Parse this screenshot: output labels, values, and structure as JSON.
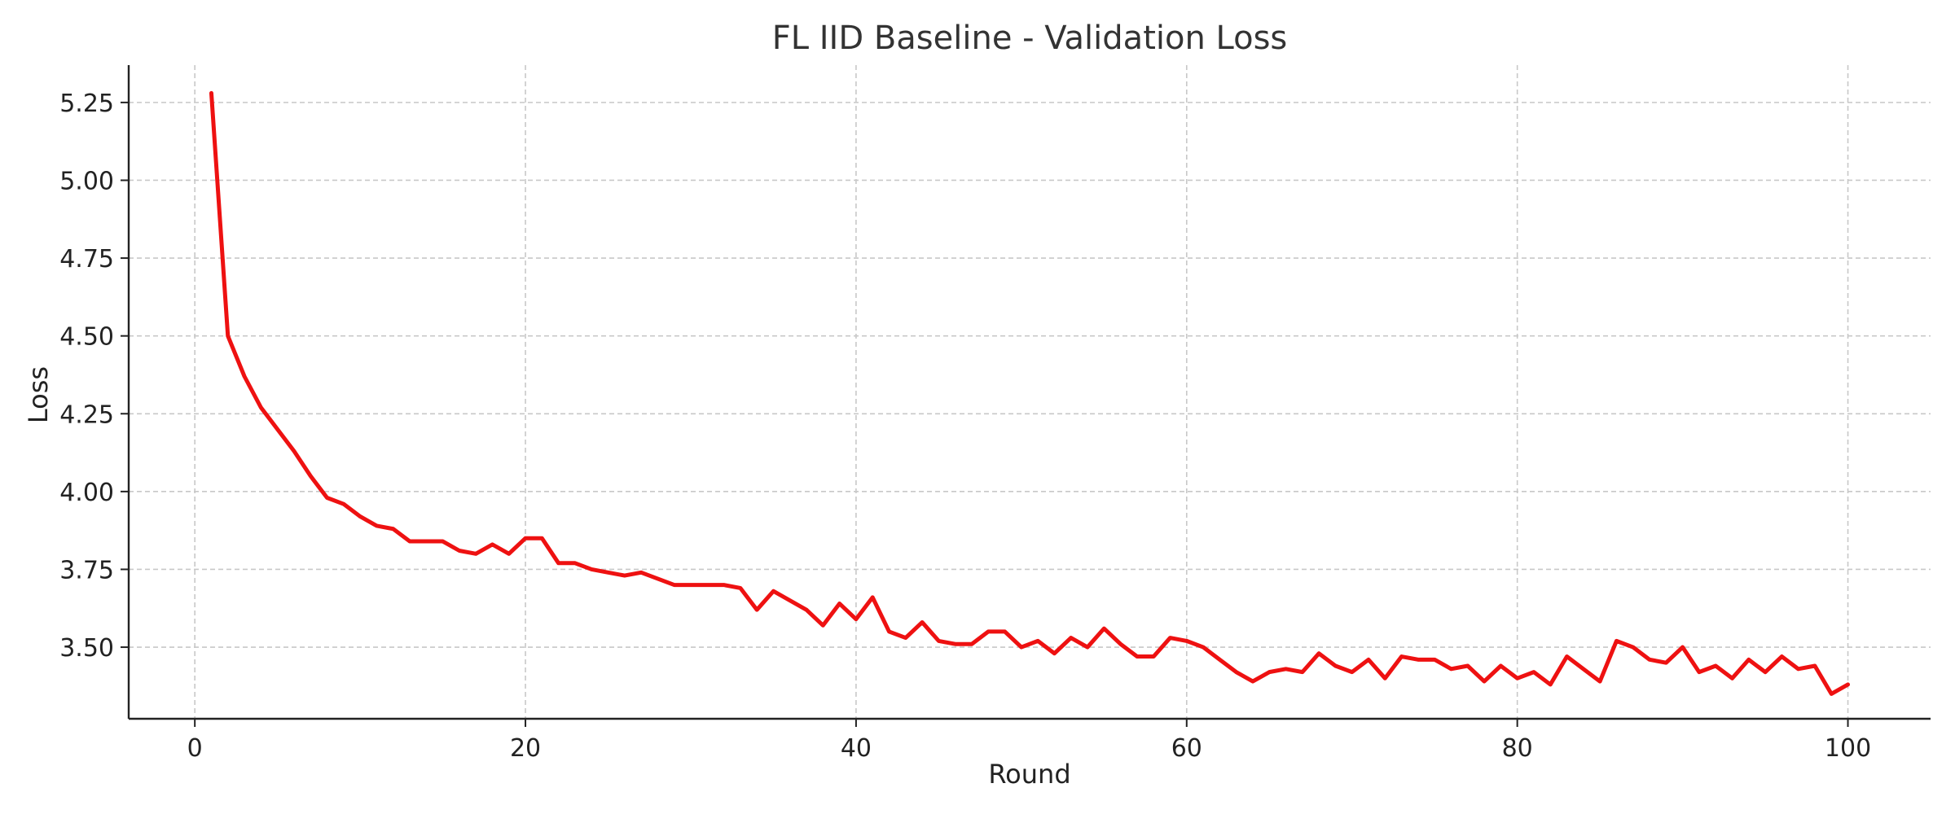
{
  "chart_data": {
    "type": "line",
    "title": "FL IID Baseline - Validation Loss",
    "xlabel": "Round",
    "ylabel": "Loss",
    "xlim": [
      -4,
      105
    ],
    "ylim": [
      3.27,
      5.37
    ],
    "xticks": [
      0,
      20,
      40,
      60,
      80,
      100
    ],
    "yticks": [
      3.5,
      3.75,
      4.0,
      4.25,
      4.5,
      4.75,
      5.0,
      5.25
    ],
    "ytick_labels": [
      "3.50",
      "3.75",
      "4.00",
      "4.25",
      "4.50",
      "4.75",
      "5.00",
      "5.25"
    ],
    "grid": true,
    "color": "#ee1111",
    "x": [
      1,
      2,
      3,
      4,
      5,
      6,
      7,
      8,
      9,
      10,
      11,
      12,
      13,
      14,
      15,
      16,
      17,
      18,
      19,
      20,
      21,
      22,
      23,
      24,
      25,
      26,
      27,
      28,
      29,
      30,
      31,
      32,
      33,
      34,
      35,
      36,
      37,
      38,
      39,
      40,
      41,
      42,
      43,
      44,
      45,
      46,
      47,
      48,
      49,
      50,
      51,
      52,
      53,
      54,
      55,
      56,
      57,
      58,
      59,
      60,
      61,
      62,
      63,
      64,
      65,
      66,
      67,
      68,
      69,
      70,
      71,
      72,
      73,
      74,
      75,
      76,
      77,
      78,
      79,
      80,
      81,
      82,
      83,
      84,
      85,
      86,
      87,
      88,
      89,
      90,
      91,
      92,
      93,
      94,
      95,
      96,
      97,
      98,
      99,
      100
    ],
    "y": [
      5.28,
      4.5,
      4.37,
      4.27,
      4.2,
      4.13,
      4.05,
      3.98,
      3.96,
      3.92,
      3.89,
      3.88,
      3.84,
      3.84,
      3.84,
      3.81,
      3.8,
      3.83,
      3.8,
      3.85,
      3.85,
      3.77,
      3.77,
      3.75,
      3.74,
      3.73,
      3.74,
      3.72,
      3.7,
      3.7,
      3.7,
      3.7,
      3.69,
      3.62,
      3.68,
      3.65,
      3.62,
      3.57,
      3.64,
      3.59,
      3.66,
      3.55,
      3.53,
      3.58,
      3.52,
      3.51,
      3.51,
      3.55,
      3.55,
      3.5,
      3.52,
      3.48,
      3.53,
      3.5,
      3.56,
      3.51,
      3.47,
      3.47,
      3.53,
      3.52,
      3.5,
      3.46,
      3.42,
      3.39,
      3.42,
      3.43,
      3.42,
      3.48,
      3.44,
      3.42,
      3.46,
      3.4,
      3.47,
      3.46,
      3.46,
      3.43,
      3.44,
      3.39,
      3.44,
      3.4,
      3.42,
      3.38,
      3.47,
      3.43,
      3.39,
      3.52,
      3.5,
      3.46,
      3.45,
      3.5,
      3.42,
      3.44,
      3.4,
      3.46,
      3.42,
      3.47,
      3.43,
      3.44,
      3.35,
      3.38
    ]
  }
}
